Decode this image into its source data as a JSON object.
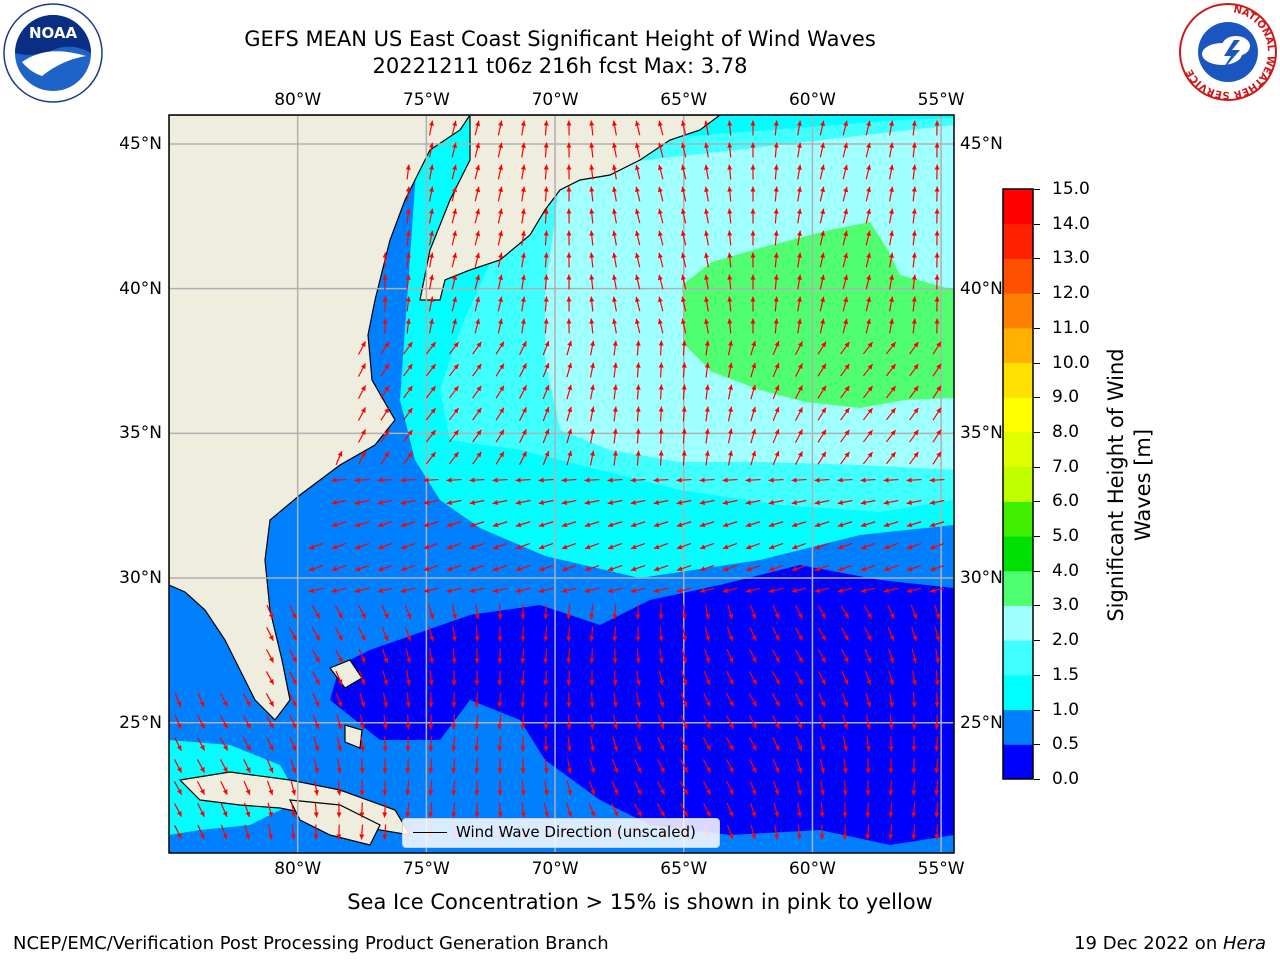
{
  "title_line1": "GEFS MEAN US East Coast Significant Height of Wind Waves",
  "title_line2": "20221211 t06z 216h fcst   Max: 3.78",
  "logos": {
    "left": "noaa-logo",
    "right": "nws-logo",
    "left_text": "NOAA",
    "right_ring_text": "NATIONAL WEATHER SERVICE"
  },
  "map": {
    "lon_ticks": [
      "80°W",
      "75°W",
      "70°W",
      "65°W",
      "60°W",
      "55°W"
    ],
    "lat_ticks": [
      "45°N",
      "40°N",
      "35°N",
      "30°N",
      "25°N"
    ],
    "lon_values": [
      -80,
      -75,
      -70,
      -65,
      -60,
      -55
    ],
    "lat_values": [
      45,
      40,
      35,
      30,
      25
    ],
    "lon_range": [
      -85,
      -54.5
    ],
    "lat_range": [
      20.5,
      46
    ],
    "vector_color": "#ff0000",
    "land_color": "#efedde",
    "grid": true
  },
  "colorbar": {
    "label": "Significant Height of Wind Waves [m]",
    "ticks": [
      "0.0",
      "0.5",
      "1.0",
      "1.5",
      "2.0",
      "3.0",
      "4.0",
      "5.0",
      "6.0",
      "7.0",
      "8.0",
      "9.0",
      "10.0",
      "11.0",
      "12.0",
      "13.0",
      "14.0",
      "15.0"
    ],
    "colors": [
      "#0000ff",
      "#0080ff",
      "#00ffff",
      "#40ffff",
      "#a0ffff",
      "#50ff70",
      "#00e000",
      "#40f000",
      "#c0ff00",
      "#e0ff00",
      "#ffff00",
      "#ffe000",
      "#ffb000",
      "#ff8000",
      "#ff5000",
      "#ff2000",
      "#ff0000"
    ]
  },
  "legend_label": "Wind Wave Direction (unscaled)",
  "caption": "Sea Ice Concentration > 15% is shown in pink to yellow",
  "footer_left": "NCEP/EMC/Verification Post Processing Product Generation Branch",
  "footer_right_date": "19 Dec 2022 on ",
  "footer_right_host": "Hera"
}
